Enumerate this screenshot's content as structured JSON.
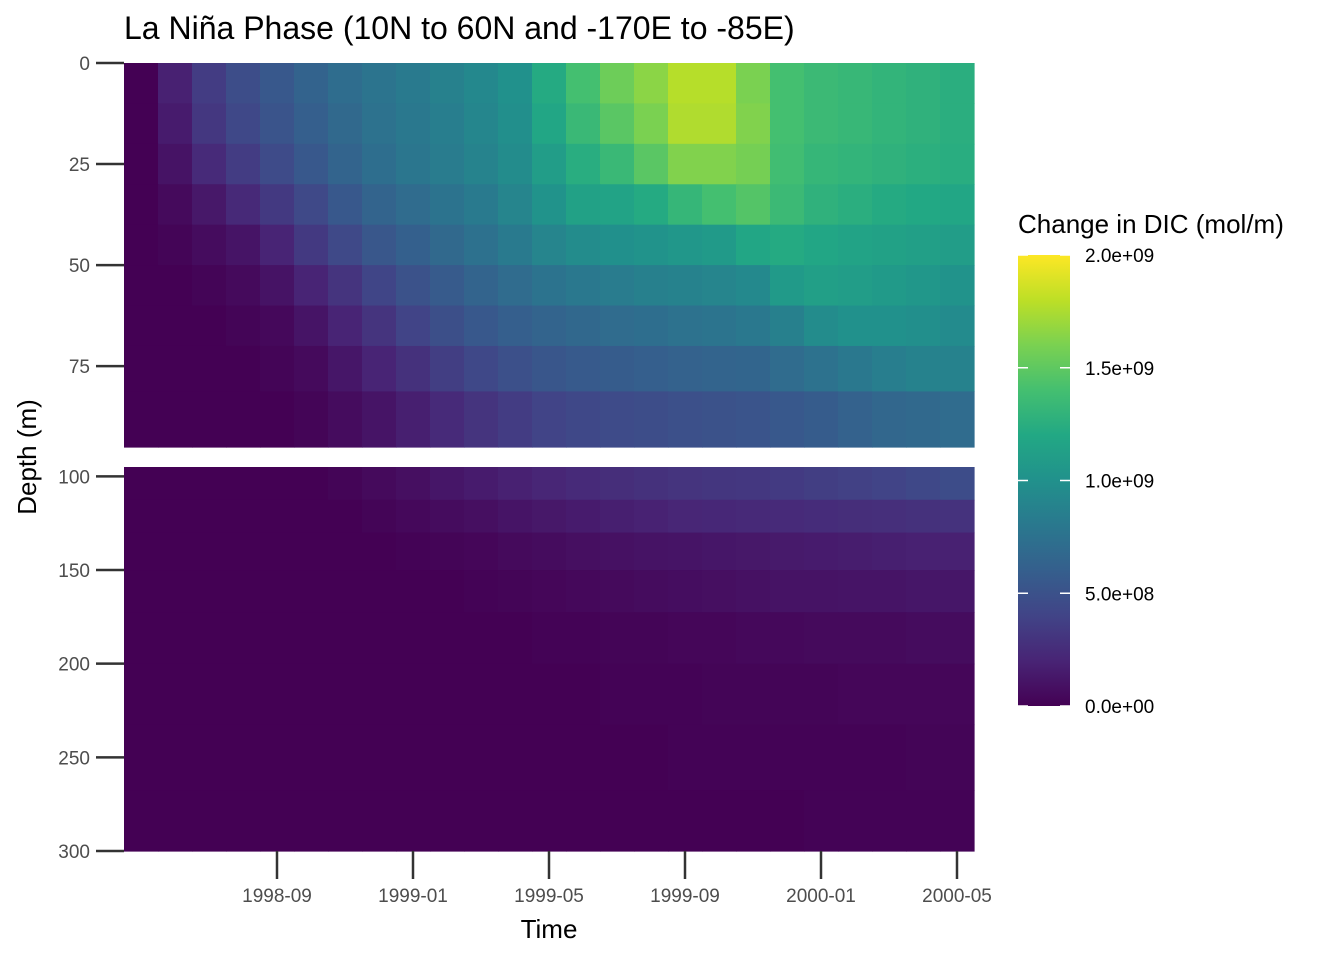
{
  "chart_data": {
    "type": "heatmap",
    "title": "La Niña Phase (10N to 60N and -170E to -85E)",
    "xlabel": "Time",
    "ylabel": "Depth (m)",
    "x_tick_labels": [
      "1998-09",
      "1999-01",
      "1999-05",
      "1999-09",
      "2000-01",
      "2000-05"
    ],
    "x_months": [
      "1998-05",
      "1998-06",
      "1998-07",
      "1998-08",
      "1998-09",
      "1998-10",
      "1998-11",
      "1998-12",
      "1999-01",
      "1999-02",
      "1999-03",
      "1999-04",
      "1999-05",
      "1999-06",
      "1999-07",
      "1999-08",
      "1999-09",
      "1999-10",
      "1999-11",
      "1999-12",
      "2000-01",
      "2000-02",
      "2000-03",
      "2000-04",
      "2000-05"
    ],
    "panels": [
      {
        "name": "upper",
        "depth_range": [
          0,
          95
        ],
        "y_ticks": [
          0,
          25,
          50,
          75
        ],
        "depths": [
          5,
          15,
          25,
          35,
          45,
          55,
          65,
          75,
          87.5
        ],
        "values": [
          [
            0.0,
            0.18,
            0.35,
            0.47,
            0.55,
            0.63,
            0.71,
            0.77,
            0.82,
            0.87,
            0.93,
            1.0,
            1.22,
            1.4,
            1.55,
            1.65,
            1.78,
            1.78,
            1.6,
            1.4,
            1.35,
            1.33,
            1.3,
            1.28,
            1.25
          ],
          [
            0.0,
            0.15,
            0.32,
            0.43,
            0.52,
            0.6,
            0.68,
            0.75,
            0.8,
            0.85,
            0.91,
            0.98,
            1.18,
            1.34,
            1.48,
            1.6,
            1.76,
            1.76,
            1.62,
            1.4,
            1.35,
            1.33,
            1.3,
            1.28,
            1.25
          ],
          [
            0.0,
            0.1,
            0.24,
            0.35,
            0.45,
            0.55,
            0.64,
            0.72,
            0.78,
            0.83,
            0.89,
            0.96,
            1.1,
            1.24,
            1.34,
            1.48,
            1.62,
            1.62,
            1.58,
            1.38,
            1.32,
            1.3,
            1.28,
            1.26,
            1.24
          ],
          [
            0.0,
            0.05,
            0.13,
            0.23,
            0.33,
            0.44,
            0.55,
            0.64,
            0.7,
            0.76,
            0.82,
            0.9,
            1.02,
            1.14,
            1.16,
            1.22,
            1.32,
            1.4,
            1.46,
            1.35,
            1.28,
            1.25,
            1.22,
            1.2,
            1.18
          ],
          [
            0.0,
            0.02,
            0.06,
            0.11,
            0.2,
            0.33,
            0.44,
            0.54,
            0.61,
            0.68,
            0.74,
            0.82,
            0.9,
            0.96,
            0.99,
            1.02,
            1.05,
            1.08,
            1.18,
            1.22,
            1.18,
            1.16,
            1.14,
            1.12,
            1.1
          ],
          [
            0.0,
            0.0,
            0.02,
            0.05,
            0.1,
            0.2,
            0.3,
            0.41,
            0.5,
            0.57,
            0.64,
            0.7,
            0.76,
            0.8,
            0.83,
            0.86,
            0.88,
            0.9,
            0.94,
            1.08,
            1.12,
            1.1,
            1.08,
            1.05,
            1.02
          ],
          [
            0.0,
            0.0,
            0.0,
            0.02,
            0.04,
            0.11,
            0.2,
            0.3,
            0.4,
            0.48,
            0.55,
            0.6,
            0.64,
            0.67,
            0.7,
            0.72,
            0.75,
            0.77,
            0.8,
            0.86,
            0.96,
            1.0,
            1.0,
            0.98,
            0.95
          ],
          [
            0.0,
            0.0,
            0.0,
            0.0,
            0.02,
            0.05,
            0.12,
            0.2,
            0.28,
            0.36,
            0.43,
            0.49,
            0.53,
            0.56,
            0.58,
            0.6,
            0.62,
            0.64,
            0.65,
            0.7,
            0.75,
            0.8,
            0.85,
            0.88,
            0.88
          ],
          [
            0.0,
            0.0,
            0.0,
            0.0,
            0.0,
            0.02,
            0.06,
            0.11,
            0.17,
            0.24,
            0.3,
            0.35,
            0.4,
            0.43,
            0.45,
            0.47,
            0.49,
            0.5,
            0.52,
            0.55,
            0.58,
            0.62,
            0.66,
            0.68,
            0.7
          ]
        ]
      },
      {
        "name": "lower",
        "depth_range": [
          95,
          300
        ],
        "y_ticks": [
          100,
          150,
          200,
          250,
          300
        ],
        "depths": [
          105,
          120,
          140,
          160,
          185,
          215,
          250,
          285
        ],
        "values": [
          [
            0.0,
            0.0,
            0.0,
            0.0,
            0.0,
            0.0,
            0.02,
            0.05,
            0.08,
            0.12,
            0.15,
            0.18,
            0.21,
            0.24,
            0.26,
            0.28,
            0.3,
            0.31,
            0.32,
            0.34,
            0.36,
            0.38,
            0.4,
            0.43,
            0.46
          ],
          [
            0.0,
            0.0,
            0.0,
            0.0,
            0.0,
            0.0,
            0.0,
            0.02,
            0.04,
            0.06,
            0.08,
            0.11,
            0.13,
            0.15,
            0.17,
            0.19,
            0.21,
            0.22,
            0.23,
            0.24,
            0.25,
            0.26,
            0.27,
            0.28,
            0.29
          ],
          [
            0.0,
            0.0,
            0.0,
            0.0,
            0.0,
            0.0,
            0.0,
            0.0,
            0.01,
            0.02,
            0.03,
            0.05,
            0.06,
            0.08,
            0.09,
            0.1,
            0.11,
            0.12,
            0.13,
            0.14,
            0.15,
            0.16,
            0.17,
            0.18,
            0.18
          ],
          [
            0.0,
            0.0,
            0.0,
            0.0,
            0.0,
            0.0,
            0.0,
            0.0,
            0.0,
            0.0,
            0.01,
            0.02,
            0.03,
            0.04,
            0.05,
            0.06,
            0.07,
            0.08,
            0.09,
            0.1,
            0.1,
            0.11,
            0.11,
            0.12,
            0.12
          ],
          [
            0.0,
            0.0,
            0.0,
            0.0,
            0.0,
            0.0,
            0.0,
            0.0,
            0.0,
            0.0,
            0.0,
            0.0,
            0.01,
            0.01,
            0.02,
            0.02,
            0.03,
            0.03,
            0.04,
            0.04,
            0.05,
            0.05,
            0.05,
            0.06,
            0.06
          ],
          [
            0.0,
            0.0,
            0.0,
            0.0,
            0.0,
            0.0,
            0.0,
            0.0,
            0.0,
            0.0,
            0.0,
            0.0,
            0.0,
            0.0,
            0.01,
            0.01,
            0.01,
            0.02,
            0.02,
            0.02,
            0.02,
            0.03,
            0.03,
            0.03,
            0.03
          ],
          [
            0.0,
            0.0,
            0.0,
            0.0,
            0.0,
            0.0,
            0.0,
            0.0,
            0.0,
            0.0,
            0.0,
            0.0,
            0.0,
            0.0,
            0.0,
            0.0,
            0.01,
            0.01,
            0.01,
            0.01,
            0.01,
            0.01,
            0.01,
            0.02,
            0.02
          ],
          [
            0.0,
            0.0,
            0.0,
            0.0,
            0.0,
            0.0,
            0.0,
            0.0,
            0.0,
            0.0,
            0.0,
            0.0,
            0.0,
            0.0,
            0.0,
            0.0,
            0.0,
            0.0,
            0.0,
            0.0,
            0.01,
            0.01,
            0.01,
            0.01,
            0.01
          ]
        ]
      }
    ],
    "value_unit_scale": 1000000000.0,
    "legend": {
      "title": "Change in DIC (mol/m)",
      "range": [
        0,
        2000000000
      ],
      "tick_values": [
        0,
        500000000,
        1000000000,
        1500000000,
        2000000000
      ],
      "tick_labels": [
        "0.0e+00",
        "5.0e+08",
        "1.0e+09",
        "1.5e+09",
        "2.0e+09"
      ],
      "palette": "viridis",
      "placement": "right"
    },
    "grid": false
  },
  "colors": {
    "viridis": [
      "#440154",
      "#482475",
      "#414487",
      "#355f8d",
      "#2a788e",
      "#21918c",
      "#22a884",
      "#44bf70",
      "#7ad151",
      "#bddf26",
      "#fde725"
    ]
  }
}
